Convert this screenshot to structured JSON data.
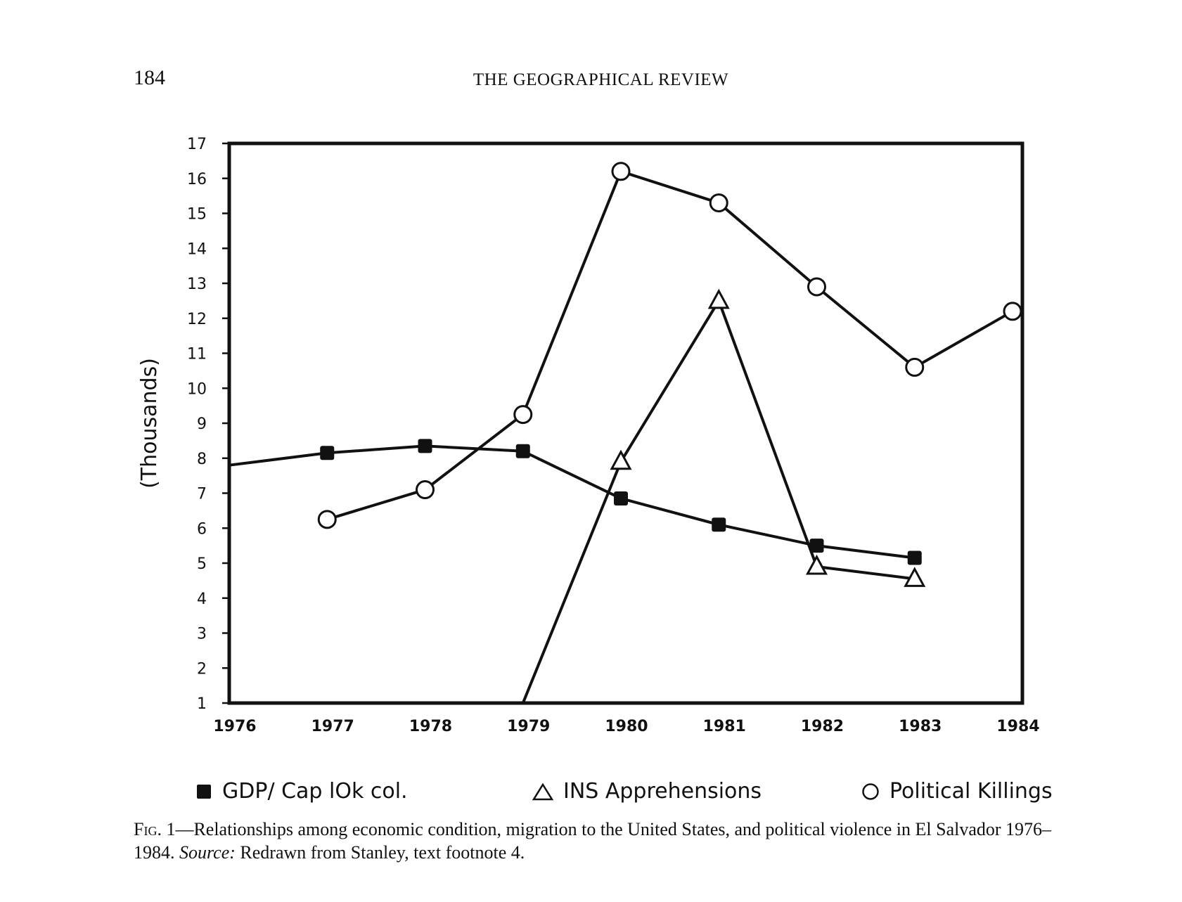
{
  "header": {
    "page_number": "184",
    "journal_title": "THE GEOGRAPHICAL REVIEW"
  },
  "chart_data": {
    "type": "line",
    "ylabel": "(Thousands)",
    "xlabel": "",
    "x_ticks": [
      "1976",
      "1977",
      "1978",
      "1979",
      "1980",
      "1981",
      "1982",
      "1983",
      "1984"
    ],
    "y_ticks": [
      "1",
      "2",
      "3",
      "4",
      "5",
      "6",
      "7",
      "8",
      "9",
      "10",
      "11",
      "12",
      "13",
      "14",
      "15",
      "16",
      "17"
    ],
    "xlim": [
      1976,
      1984
    ],
    "ylim": [
      1,
      17
    ],
    "grid": false,
    "legend_placement": "bottom",
    "series": [
      {
        "name": "GDP/ Cap 10k col.",
        "marker": "filled-square",
        "points": [
          [
            1976,
            7.8
          ],
          [
            1977,
            8.15
          ],
          [
            1978,
            8.35
          ],
          [
            1979,
            8.2
          ],
          [
            1980,
            6.85
          ],
          [
            1981,
            6.1
          ],
          [
            1982,
            5.5
          ],
          [
            1983,
            5.15
          ]
        ]
      },
      {
        "name": "INS Apprehensions",
        "marker": "open-triangle",
        "points": [
          [
            1979,
            1.0
          ],
          [
            1980,
            7.9
          ],
          [
            1981,
            12.5
          ],
          [
            1982,
            4.9
          ],
          [
            1983,
            4.55
          ]
        ]
      },
      {
        "name": "Political Killings",
        "marker": "open-circle",
        "points": [
          [
            1977,
            6.25
          ],
          [
            1978,
            7.1
          ],
          [
            1979,
            9.25
          ],
          [
            1980,
            16.2
          ],
          [
            1981,
            15.3
          ],
          [
            1982,
            12.9
          ],
          [
            1983,
            10.6
          ],
          [
            1984,
            12.2
          ]
        ]
      }
    ]
  },
  "legend": {
    "gdp_label": "GDP/ Cap lOk col.",
    "ins_label": "INS Apprehensions",
    "killings_label": "Political Killings"
  },
  "caption": {
    "fig_tag": "Fig. 1",
    "text_main": "—Relationships among economic condition, migration to the United States, and political violence in El Salvador 1976–1984. ",
    "source_label": "Source:",
    "source_text": " Redrawn from Stanley, text footnote 4."
  }
}
